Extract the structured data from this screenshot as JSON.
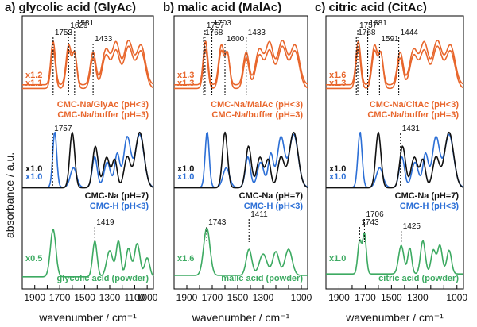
{
  "chart_data": {
    "type": "line",
    "ylabel": "absorbance / a.u.",
    "xlabel": "wavenumber / cm⁻¹",
    "x_unit_note": "wavenumber decreasing left to right",
    "colors": {
      "orange": "#E8662C",
      "black": "#111111",
      "blue": "#2C6FD6",
      "green": "#3DAA62"
    },
    "panels": [
      {
        "title": "a) glycolic acid (GlyAc)",
        "xlim": [
          2000,
          950
        ],
        "xticks": [
          1900,
          1800,
          1700,
          1600,
          1500,
          1400,
          1300,
          1200,
          1100,
          1000
        ],
        "xtick_labels": [
          "1900",
          "",
          "1700",
          "",
          "1500",
          "",
          "1300",
          "",
          "1100",
          "1000"
        ],
        "peaks": [
          {
            "label": "1753",
            "x": 1753,
            "group": "top"
          },
          {
            "label": "1629",
            "x": 1629,
            "group": "top"
          },
          {
            "label": "1581",
            "x": 1581,
            "group": "top"
          },
          {
            "label": "1433",
            "x": 1433,
            "group": "top"
          },
          {
            "label": "1757",
            "x": 1757,
            "group": "mid"
          },
          {
            "label": "1419",
            "x": 1419,
            "group": "bottom"
          }
        ],
        "groups": [
          {
            "id": "top",
            "labels": [
              {
                "text": "CMC-Na/GlyAc (pH<3)",
                "color": "orange"
              },
              {
                "text": "CMC-Na/buffer (pH=3)",
                "color": "orange"
              }
            ],
            "scales": [
              {
                "text": "x1.2",
                "color": "orange"
              },
              {
                "text": "x1.1",
                "color": "orange"
              }
            ]
          },
          {
            "id": "mid",
            "labels": [
              {
                "text": "CMC-Na (pH=7)",
                "color": "black"
              },
              {
                "text": "CMC-H (pH<3)",
                "color": "blue"
              }
            ],
            "scales": [
              {
                "text": "x1.0",
                "color": "black"
              },
              {
                "text": "x1.0",
                "color": "blue"
              }
            ]
          },
          {
            "id": "bottom",
            "labels": [
              {
                "text": "glycolic acid (powder)",
                "color": "green"
              }
            ],
            "scales": [
              {
                "text": "x0.5",
                "color": "green"
              }
            ]
          }
        ]
      },
      {
        "title": "b) malic acid (MalAc)",
        "xlim": [
          2000,
          950
        ],
        "xticks": [
          1900,
          1800,
          1700,
          1600,
          1500,
          1400,
          1300,
          1200,
          1100,
          1000
        ],
        "xtick_labels": [
          "1900",
          "",
          "1700",
          "",
          "1500",
          "",
          "1300",
          "",
          "",
          "1000"
        ],
        "peaks": [
          {
            "label": "1768",
            "x": 1768,
            "group": "top"
          },
          {
            "label": "1757",
            "x": 1757,
            "group": "top"
          },
          {
            "label": "1703",
            "x": 1703,
            "group": "top"
          },
          {
            "label": "1600",
            "x": 1600,
            "group": "top"
          },
          {
            "label": "1433",
            "x": 1433,
            "group": "top"
          },
          {
            "label": "1743",
            "x": 1743,
            "group": "bottom"
          },
          {
            "label": "1411",
            "x": 1411,
            "group": "bottom"
          }
        ],
        "groups": [
          {
            "id": "top",
            "labels": [
              {
                "text": "CMC-Na/MalAc (pH<3)",
                "color": "orange"
              },
              {
                "text": "CMC-Na/buffer (pH=3)",
                "color": "orange"
              }
            ],
            "scales": [
              {
                "text": "x1.3",
                "color": "orange"
              },
              {
                "text": "x1.3",
                "color": "orange"
              }
            ]
          },
          {
            "id": "mid",
            "labels": [
              {
                "text": "CMC-Na (pH=7)",
                "color": "black"
              },
              {
                "text": "CMC-H (pH<3)",
                "color": "blue"
              }
            ],
            "scales": [
              {
                "text": "x1.0",
                "color": "black"
              },
              {
                "text": "x1.0",
                "color": "blue"
              }
            ]
          },
          {
            "id": "bottom",
            "labels": [
              {
                "text": "malic acid (powder)",
                "color": "green"
              }
            ],
            "scales": [
              {
                "text": "x1.6",
                "color": "green"
              }
            ]
          }
        ]
      },
      {
        "title": "c) citric acid (CitAc)",
        "xlim": [
          2000,
          950
        ],
        "xticks": [
          1900,
          1800,
          1700,
          1600,
          1500,
          1400,
          1300,
          1200,
          1100,
          1000
        ],
        "xtick_labels": [
          "1900",
          "",
          "1700",
          "",
          "1500",
          "",
          "1300",
          "",
          "",
          "1000"
        ],
        "peaks": [
          {
            "label": "1768",
            "x": 1768,
            "group": "top"
          },
          {
            "label": "1757",
            "x": 1757,
            "group": "top"
          },
          {
            "label": "1681",
            "x": 1681,
            "group": "top"
          },
          {
            "label": "1591",
            "x": 1591,
            "group": "top"
          },
          {
            "label": "1444",
            "x": 1444,
            "group": "top"
          },
          {
            "label": "1431",
            "x": 1431,
            "group": "mid"
          },
          {
            "label": "1743",
            "x": 1743,
            "group": "bottom"
          },
          {
            "label": "1706",
            "x": 1706,
            "group": "bottom"
          },
          {
            "label": "1425",
            "x": 1425,
            "group": "bottom"
          }
        ],
        "groups": [
          {
            "id": "top",
            "labels": [
              {
                "text": "CMC-Na/CitAc (pH<3)",
                "color": "orange"
              },
              {
                "text": "CMC-Na/buffer (pH=3)",
                "color": "orange"
              }
            ],
            "scales": [
              {
                "text": "x1.6",
                "color": "orange"
              },
              {
                "text": "x1.3",
                "color": "orange"
              }
            ]
          },
          {
            "id": "mid",
            "labels": [
              {
                "text": "CMC-Na (pH=7)",
                "color": "black"
              },
              {
                "text": "CMC-H (pH<3)",
                "color": "blue"
              }
            ],
            "scales": [
              {
                "text": "x1.0",
                "color": "black"
              },
              {
                "text": "x1.0",
                "color": "blue"
              }
            ]
          },
          {
            "id": "bottom",
            "labels": [
              {
                "text": "citric acid (powder)",
                "color": "green"
              }
            ],
            "scales": [
              {
                "text": "x1.0",
                "color": "green"
              }
            ]
          }
        ]
      }
    ]
  }
}
